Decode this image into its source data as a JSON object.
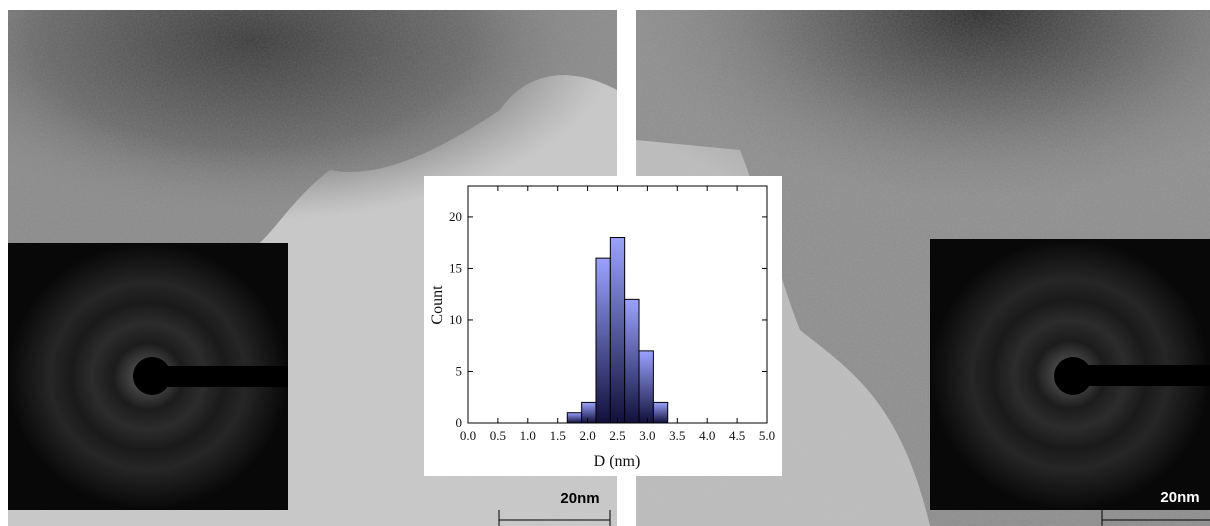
{
  "chart_data": {
    "type": "histogram",
    "bins": [
      1.66,
      1.9,
      2.14,
      2.38,
      2.62,
      2.86,
      3.1,
      3.34
    ],
    "counts": [
      1,
      2,
      16,
      18,
      12,
      7,
      2
    ],
    "color": "#9aa2ff",
    "xlabel": "D (nm)",
    "ylabel": "Count",
    "xlim": [
      0,
      5
    ],
    "ylim": [
      0,
      23
    ],
    "xticks": [
      {
        "value": 0,
        "label": "0.0"
      },
      0.5,
      {
        "value": 1,
        "label": "1.0"
      },
      1.5,
      {
        "value": 2,
        "label": "2.0"
      },
      2.5,
      {
        "value": 3,
        "label": "3.0"
      },
      3.5,
      {
        "value": 4,
        "label": "4.0"
      },
      4.5,
      {
        "value": 5,
        "label": "5.0"
      }
    ],
    "yticks": [
      0,
      5,
      10,
      15,
      20
    ]
  },
  "panels": [
    {
      "scale_label": "20nm"
    },
    {
      "scale_label": "20nm"
    }
  ]
}
